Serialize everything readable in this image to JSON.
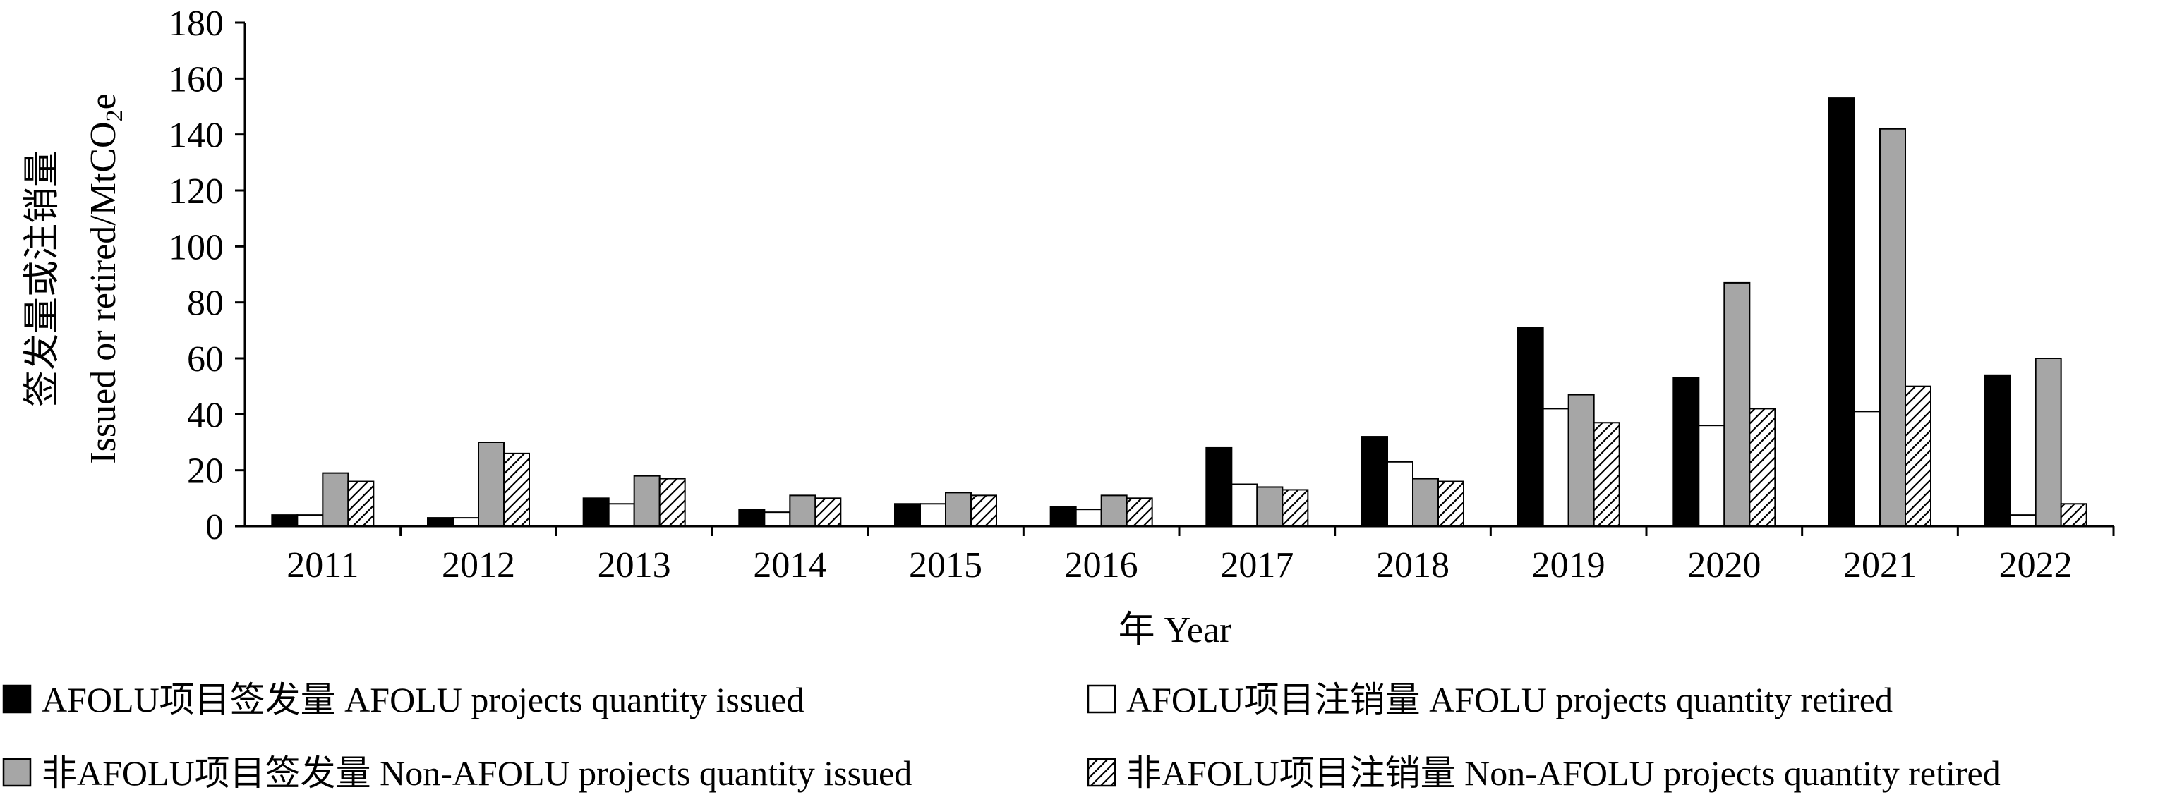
{
  "chart_data": {
    "type": "bar",
    "title": "",
    "xlabel": "年 Year",
    "ylabel_line1": "签发量或注销量",
    "ylabel_line2_prefix": "Issued or retired/MtCO",
    "ylabel_line2_sub": "2",
    "ylabel_line2_suffix": "e",
    "ylim": [
      0,
      180
    ],
    "yticks": [
      0,
      20,
      40,
      60,
      80,
      100,
      120,
      140,
      160,
      180
    ],
    "grid": false,
    "legend_position": "bottom",
    "categories": [
      "2011",
      "2012",
      "2013",
      "2014",
      "2015",
      "2016",
      "2017",
      "2018",
      "2019",
      "2020",
      "2021",
      "2022"
    ],
    "series": [
      {
        "name": "AFOLU项目签发量  AFOLU projects quantity issued",
        "fill": "#000000",
        "pattern": "none",
        "values": [
          4,
          3,
          10,
          6,
          8,
          7,
          28,
          32,
          71,
          53,
          153,
          54
        ]
      },
      {
        "name": "AFOLU项目注销量  AFOLU projects quantity retired",
        "fill": "#ffffff",
        "pattern": "none",
        "values": [
          4,
          3,
          8,
          5,
          8,
          6,
          15,
          23,
          42,
          36,
          41,
          4
        ]
      },
      {
        "name": "非AFOLU项目签发量  Non-AFOLU projects quantity issued",
        "fill": "#a6a6a6",
        "pattern": "none",
        "values": [
          19,
          30,
          18,
          11,
          12,
          11,
          14,
          17,
          47,
          87,
          142,
          60
        ]
      },
      {
        "name": "非AFOLU项目注销量  Non-AFOLU projects quantity retired",
        "fill": "#ffffff",
        "pattern": "hatch",
        "values": [
          16,
          26,
          17,
          10,
          11,
          10,
          13,
          16,
          37,
          42,
          50,
          8
        ]
      }
    ]
  },
  "colors": {
    "axis": "#000000",
    "bar_stroke": "#000000"
  }
}
